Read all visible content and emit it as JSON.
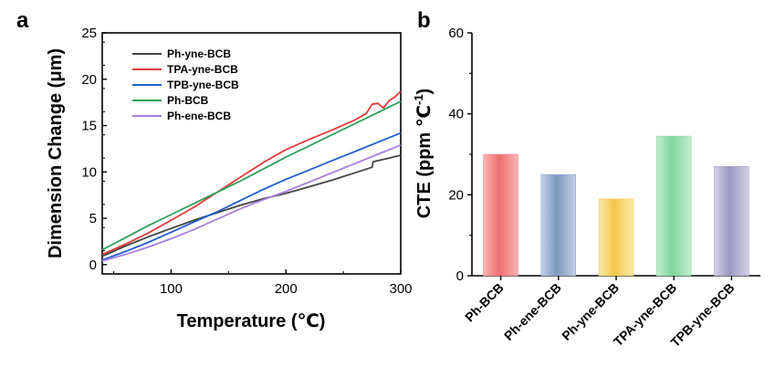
{
  "chart_data": [
    {
      "panel_label": "a",
      "type": "line",
      "xlabel": "Temperature (℃)",
      "ylabel": "Dimension Change (μm)",
      "xlim": [
        40,
        300
      ],
      "ylim": [
        -1,
        25
      ],
      "xticks": [
        100,
        200,
        300
      ],
      "yticks": [
        0,
        5,
        10,
        15,
        20,
        25
      ],
      "legend_position": "top-left",
      "series": [
        {
          "name": "Ph-yne-BCB",
          "color": "#444444",
          "x": [
            40,
            60,
            80,
            100,
            120,
            140,
            160,
            180,
            200,
            220,
            240,
            260,
            275,
            276,
            290,
            300
          ],
          "y": [
            0.9,
            2.0,
            3.0,
            3.9,
            4.8,
            5.6,
            6.4,
            7.1,
            7.7,
            8.4,
            9.1,
            9.9,
            10.5,
            11.1,
            11.5,
            11.8
          ]
        },
        {
          "name": "TPA-yne-BCB",
          "color": "#e23a3a",
          "x": [
            40,
            60,
            80,
            100,
            120,
            140,
            160,
            180,
            200,
            220,
            240,
            260,
            270,
            275,
            280,
            285,
            290,
            295,
            300
          ],
          "y": [
            1.1,
            2.2,
            3.4,
            4.8,
            6.2,
            7.8,
            9.4,
            11.0,
            12.4,
            13.5,
            14.5,
            15.6,
            16.3,
            17.3,
            17.4,
            16.9,
            17.7,
            18.1,
            18.7
          ]
        },
        {
          "name": "TPB-yne-BCB",
          "color": "#1f5fcc",
          "x": [
            40,
            60,
            80,
            100,
            120,
            140,
            160,
            180,
            200,
            220,
            240,
            260,
            280,
            300
          ],
          "y": [
            0.5,
            1.4,
            2.4,
            3.5,
            4.6,
            5.7,
            6.9,
            8.1,
            9.2,
            10.2,
            11.2,
            12.2,
            13.2,
            14.2
          ]
        },
        {
          "name": "Ph-BCB",
          "color": "#2ea05a",
          "x": [
            40,
            60,
            80,
            100,
            120,
            140,
            160,
            180,
            200,
            220,
            240,
            260,
            280,
            300
          ],
          "y": [
            1.6,
            2.9,
            4.2,
            5.4,
            6.6,
            7.8,
            9.0,
            10.3,
            11.6,
            12.8,
            14.0,
            15.2,
            16.4,
            17.6
          ]
        },
        {
          "name": "Ph-ene-BCB",
          "color": "#a87fe0",
          "x": [
            40,
            60,
            80,
            100,
            120,
            140,
            160,
            180,
            200,
            220,
            240,
            260,
            280,
            300
          ],
          "y": [
            0.4,
            1.1,
            1.9,
            2.8,
            3.8,
            4.9,
            6.0,
            7.0,
            7.9,
            8.9,
            9.9,
            10.9,
            11.9,
            12.9
          ]
        }
      ]
    },
    {
      "panel_label": "b",
      "type": "bar",
      "xlabel": "",
      "ylabel": "CTE (ppm ℃",
      "ylabel_superscript": "-1",
      "ylabel_suffix": ")",
      "ylim": [
        0,
        60
      ],
      "yticks": [
        0,
        20,
        40,
        60
      ],
      "categories": [
        "Ph-BCB",
        "Ph-ene-BCB",
        "Ph-yne-BCB",
        "TPA-yne-BCB",
        "TPB-yne-BCB"
      ],
      "values": [
        30,
        25,
        19,
        34.5,
        27
      ],
      "colors": [
        "#f28b8b",
        "#8ea6c8",
        "#f4d268",
        "#8ed9a4",
        "#a8a6c8"
      ]
    }
  ]
}
